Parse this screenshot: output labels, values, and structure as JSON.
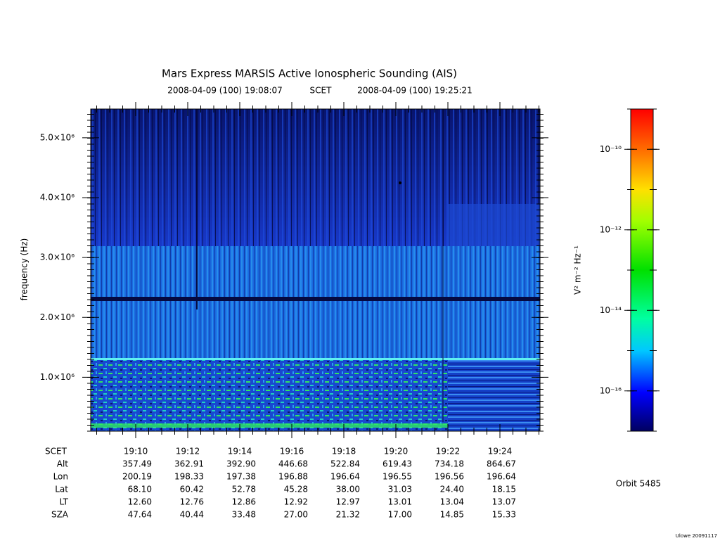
{
  "chart_data": {
    "type": "spectrogram",
    "title": "Mars Express MARSIS Active Ionospheric Sounding (AIS)",
    "time_start": "2008-04-09 (100) 19:08:07",
    "time_system": "SCET",
    "time_end": "2008-04-09 (100) 19:25:21",
    "y_label": "frequency (Hz)",
    "ylim": [
      100000,
      5480000
    ],
    "yticks": [
      {
        "value": 1000000,
        "label": "1.0×10⁶"
      },
      {
        "value": 2000000,
        "label": "2.0×10⁶"
      },
      {
        "value": 3000000,
        "label": "3.0×10⁶"
      },
      {
        "value": 4000000,
        "label": "4.0×10⁶"
      },
      {
        "value": 5000000,
        "label": "5.0×10⁶"
      }
    ],
    "colorbar": {
      "label": "V² m⁻² Hz⁻¹",
      "log_scale": true,
      "zlim": [
        1e-17,
        1e-09
      ],
      "zticks": [
        {
          "value": 1e-10,
          "label": "10⁻¹⁰"
        },
        {
          "value": 1e-12,
          "label": "10⁻¹²"
        },
        {
          "value": 1e-14,
          "label": "10⁻¹⁴"
        },
        {
          "value": 1e-16,
          "label": "10⁻¹⁶"
        }
      ]
    },
    "ephemeris": {
      "row_label": "SCET",
      "categories": [
        "19:10",
        "19:12",
        "19:14",
        "19:16",
        "19:18",
        "19:20",
        "19:22",
        "19:24"
      ],
      "rows": [
        {
          "label": "Alt",
          "values": [
            "357.49",
            "362.91",
            "392.90",
            "446.68",
            "522.84",
            "619.43",
            "734.18",
            "864.67"
          ]
        },
        {
          "label": "Lon",
          "values": [
            "200.19",
            "198.33",
            "197.38",
            "196.88",
            "196.64",
            "196.55",
            "196.56",
            "196.64"
          ]
        },
        {
          "label": "Lat",
          "values": [
            "68.10",
            "60.42",
            "52.78",
            "45.28",
            "38.00",
            "31.03",
            "24.40",
            "18.15"
          ]
        },
        {
          "label": "LT",
          "values": [
            "12.60",
            "12.76",
            "12.86",
            "12.92",
            "12.97",
            "13.01",
            "13.04",
            "13.07"
          ]
        },
        {
          "label": "SZA",
          "values": [
            "47.64",
            "40.44",
            "33.48",
            "27.00",
            "21.32",
            "17.00",
            "14.85",
            "15.33"
          ]
        }
      ]
    },
    "orbit": "Orbit 5485",
    "footer": "Ulowe 20091117"
  }
}
